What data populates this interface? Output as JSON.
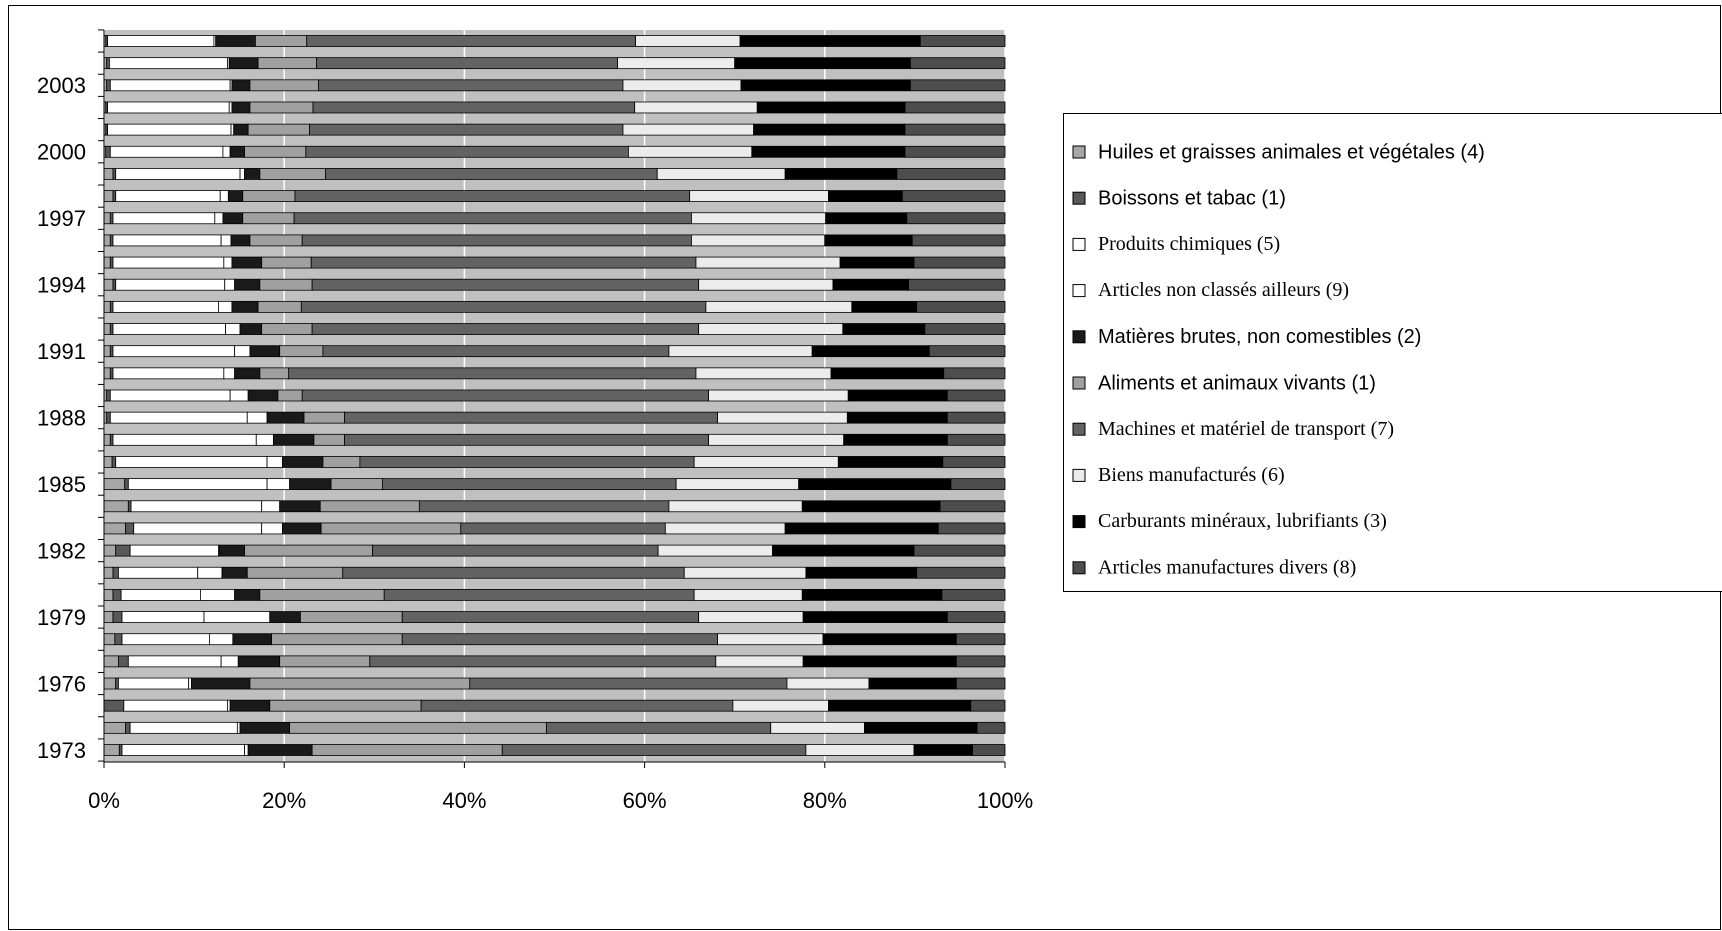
{
  "chart_data": {
    "type": "stacked-bar-horizontal",
    "categories": [
      "1973",
      null,
      null,
      "1976",
      null,
      null,
      "1979",
      null,
      null,
      "1982",
      null,
      null,
      "1985",
      null,
      null,
      "1988",
      null,
      null,
      "1991",
      null,
      null,
      "1994",
      null,
      null,
      "1997",
      null,
      null,
      "2000",
      null,
      null,
      "2003",
      null,
      null
    ],
    "series": [
      {
        "name": "Huiles et graisses animales et végétales (4)",
        "color": "#a6a6a6",
        "values": [
          1.7,
          2.4,
          0,
          1.3,
          1.6,
          1.2,
          1.0,
          1.0,
          1.0,
          1.3,
          2.4,
          2.7,
          2.3,
          0.9,
          0.7,
          0.3,
          0.3,
          0.7,
          0.7,
          0.7,
          0.7,
          1.0,
          0.7,
          0.7,
          0.7,
          1.0,
          1.0,
          0.2,
          0.2,
          0.2,
          0.3,
          0.3,
          0.2
        ]
      },
      {
        "name": "Boissons et tabac (1)",
        "color": "#595959",
        "values": [
          0.3,
          0.5,
          2.2,
          0.3,
          1.1,
          0.8,
          1.0,
          0.9,
          0.6,
          1.6,
          0.9,
          0.3,
          0.4,
          0.4,
          0.3,
          0.4,
          0.4,
          0.3,
          0.3,
          0.3,
          0.3,
          0.3,
          0.3,
          0.3,
          0.3,
          0.3,
          0.3,
          0.5,
          0.2,
          0.2,
          0.4,
          0.3,
          0.2
        ]
      },
      {
        "name": "Produits chimiques (5)",
        "color": "#ffffff",
        "values": [
          13.6,
          11.9,
          11.5,
          7.8,
          10.3,
          9.7,
          9.1,
          8.8,
          8.8,
          9.8,
          14.2,
          14.5,
          15.4,
          16.8,
          15.9,
          15.2,
          13.3,
          12.3,
          13.5,
          12.5,
          11.7,
          12.1,
          12.3,
          12.0,
          11.3,
          11.6,
          13.8,
          12.5,
          13.7,
          13.5,
          13.3,
          13.1,
          11.8
        ]
      },
      {
        "name": "Articles non classés ailleurs (9)",
        "color": "#ffffff",
        "values": [
          0.4,
          0.3,
          0.3,
          0.3,
          1.9,
          2.6,
          7.3,
          3.8,
          2.7,
          0.1,
          2.3,
          2.0,
          2.5,
          1.7,
          1.9,
          2.2,
          2.0,
          1.2,
          1.7,
          1.6,
          1.5,
          1.1,
          0.9,
          1.1,
          0.9,
          0.9,
          0.5,
          0.8,
          0.3,
          0.3,
          0.2,
          0.2,
          0.2
        ]
      },
      {
        "name": "Matières brutes, non comestibles (2)",
        "color": "#1a1a1a",
        "values": [
          7.1,
          5.5,
          4.4,
          6.5,
          4.6,
          4.3,
          3.4,
          2.8,
          2.8,
          2.8,
          4.3,
          4.5,
          4.6,
          4.5,
          4.5,
          4.1,
          3.3,
          2.8,
          3.3,
          2.4,
          2.9,
          2.8,
          3.3,
          2.1,
          2.2,
          1.6,
          1.7,
          1.6,
          1.6,
          2.0,
          2.0,
          3.2,
          4.4
        ]
      },
      {
        "name": "Aliments et animaux vivants (1)",
        "color": "#a0a0a0",
        "values": [
          21.1,
          28.5,
          16.8,
          24.4,
          10.0,
          14.5,
          11.3,
          13.8,
          10.6,
          14.2,
          15.5,
          11.0,
          5.7,
          4.1,
          3.4,
          4.5,
          2.7,
          3.2,
          4.8,
          5.6,
          4.8,
          5.8,
          5.5,
          5.8,
          5.7,
          5.8,
          7.3,
          6.8,
          6.8,
          7.0,
          7.6,
          6.5,
          5.7
        ]
      },
      {
        "name": "Machines et matériel de transport (7)",
        "color": "#636363",
        "values": [
          33.7,
          24.9,
          34.6,
          35.2,
          38.4,
          35.0,
          32.9,
          34.4,
          37.9,
          31.7,
          22.7,
          27.7,
          32.6,
          37.1,
          40.4,
          41.4,
          45.1,
          45.2,
          38.4,
          42.9,
          44.9,
          42.9,
          42.7,
          43.2,
          44.1,
          43.8,
          36.8,
          35.8,
          34.8,
          35.7,
          33.8,
          33.4,
          36.5
        ]
      },
      {
        "name": "Biens manufacturés (6)",
        "color": "#ececec",
        "values": [
          12.0,
          10.4,
          10.6,
          9.1,
          9.7,
          11.7,
          11.6,
          12.0,
          13.5,
          12.7,
          13.3,
          14.8,
          13.6,
          16.0,
          15.0,
          14.4,
          15.5,
          15.0,
          15.9,
          16.0,
          16.2,
          14.9,
          16.0,
          14.8,
          14.9,
          15.4,
          14.2,
          13.7,
          14.5,
          13.6,
          13.1,
          13.0,
          11.6
        ]
      },
      {
        "name": "Carburants minéraux, lubrifiants (3)",
        "color": "#000000",
        "values": [
          6.5,
          12.5,
          15.8,
          9.7,
          17.0,
          14.8,
          16.0,
          15.5,
          12.3,
          15.7,
          17.0,
          15.3,
          16.9,
          11.6,
          11.5,
          11.1,
          11.0,
          12.5,
          13.0,
          9.1,
          7.2,
          8.4,
          8.2,
          9.7,
          9.0,
          8.2,
          12.4,
          17.0,
          16.8,
          16.4,
          18.8,
          19.5,
          20.0
        ]
      },
      {
        "name": "Articles manufactures divers (8)",
        "color": "#4d4d4d",
        "values": [
          3.6,
          3.1,
          3.8,
          5.4,
          5.4,
          5.4,
          6.4,
          7.0,
          9.8,
          10.1,
          7.4,
          7.2,
          6.0,
          6.9,
          6.4,
          6.4,
          6.4,
          6.8,
          8.4,
          8.9,
          9.8,
          10.7,
          10.1,
          10.3,
          10.9,
          11.4,
          12.0,
          11.1,
          11.1,
          11.1,
          10.5,
          10.5,
          9.4
        ]
      }
    ],
    "xlim": [
      0,
      100
    ],
    "xticks": [
      {
        "value": 0,
        "label": "0%"
      },
      {
        "value": 20,
        "label": "20%"
      },
      {
        "value": 40,
        "label": "40%"
      },
      {
        "value": 60,
        "label": "60%"
      },
      {
        "value": 80,
        "label": "80%"
      },
      {
        "value": 100,
        "label": "100%"
      }
    ],
    "grid": true,
    "legend": "right"
  }
}
